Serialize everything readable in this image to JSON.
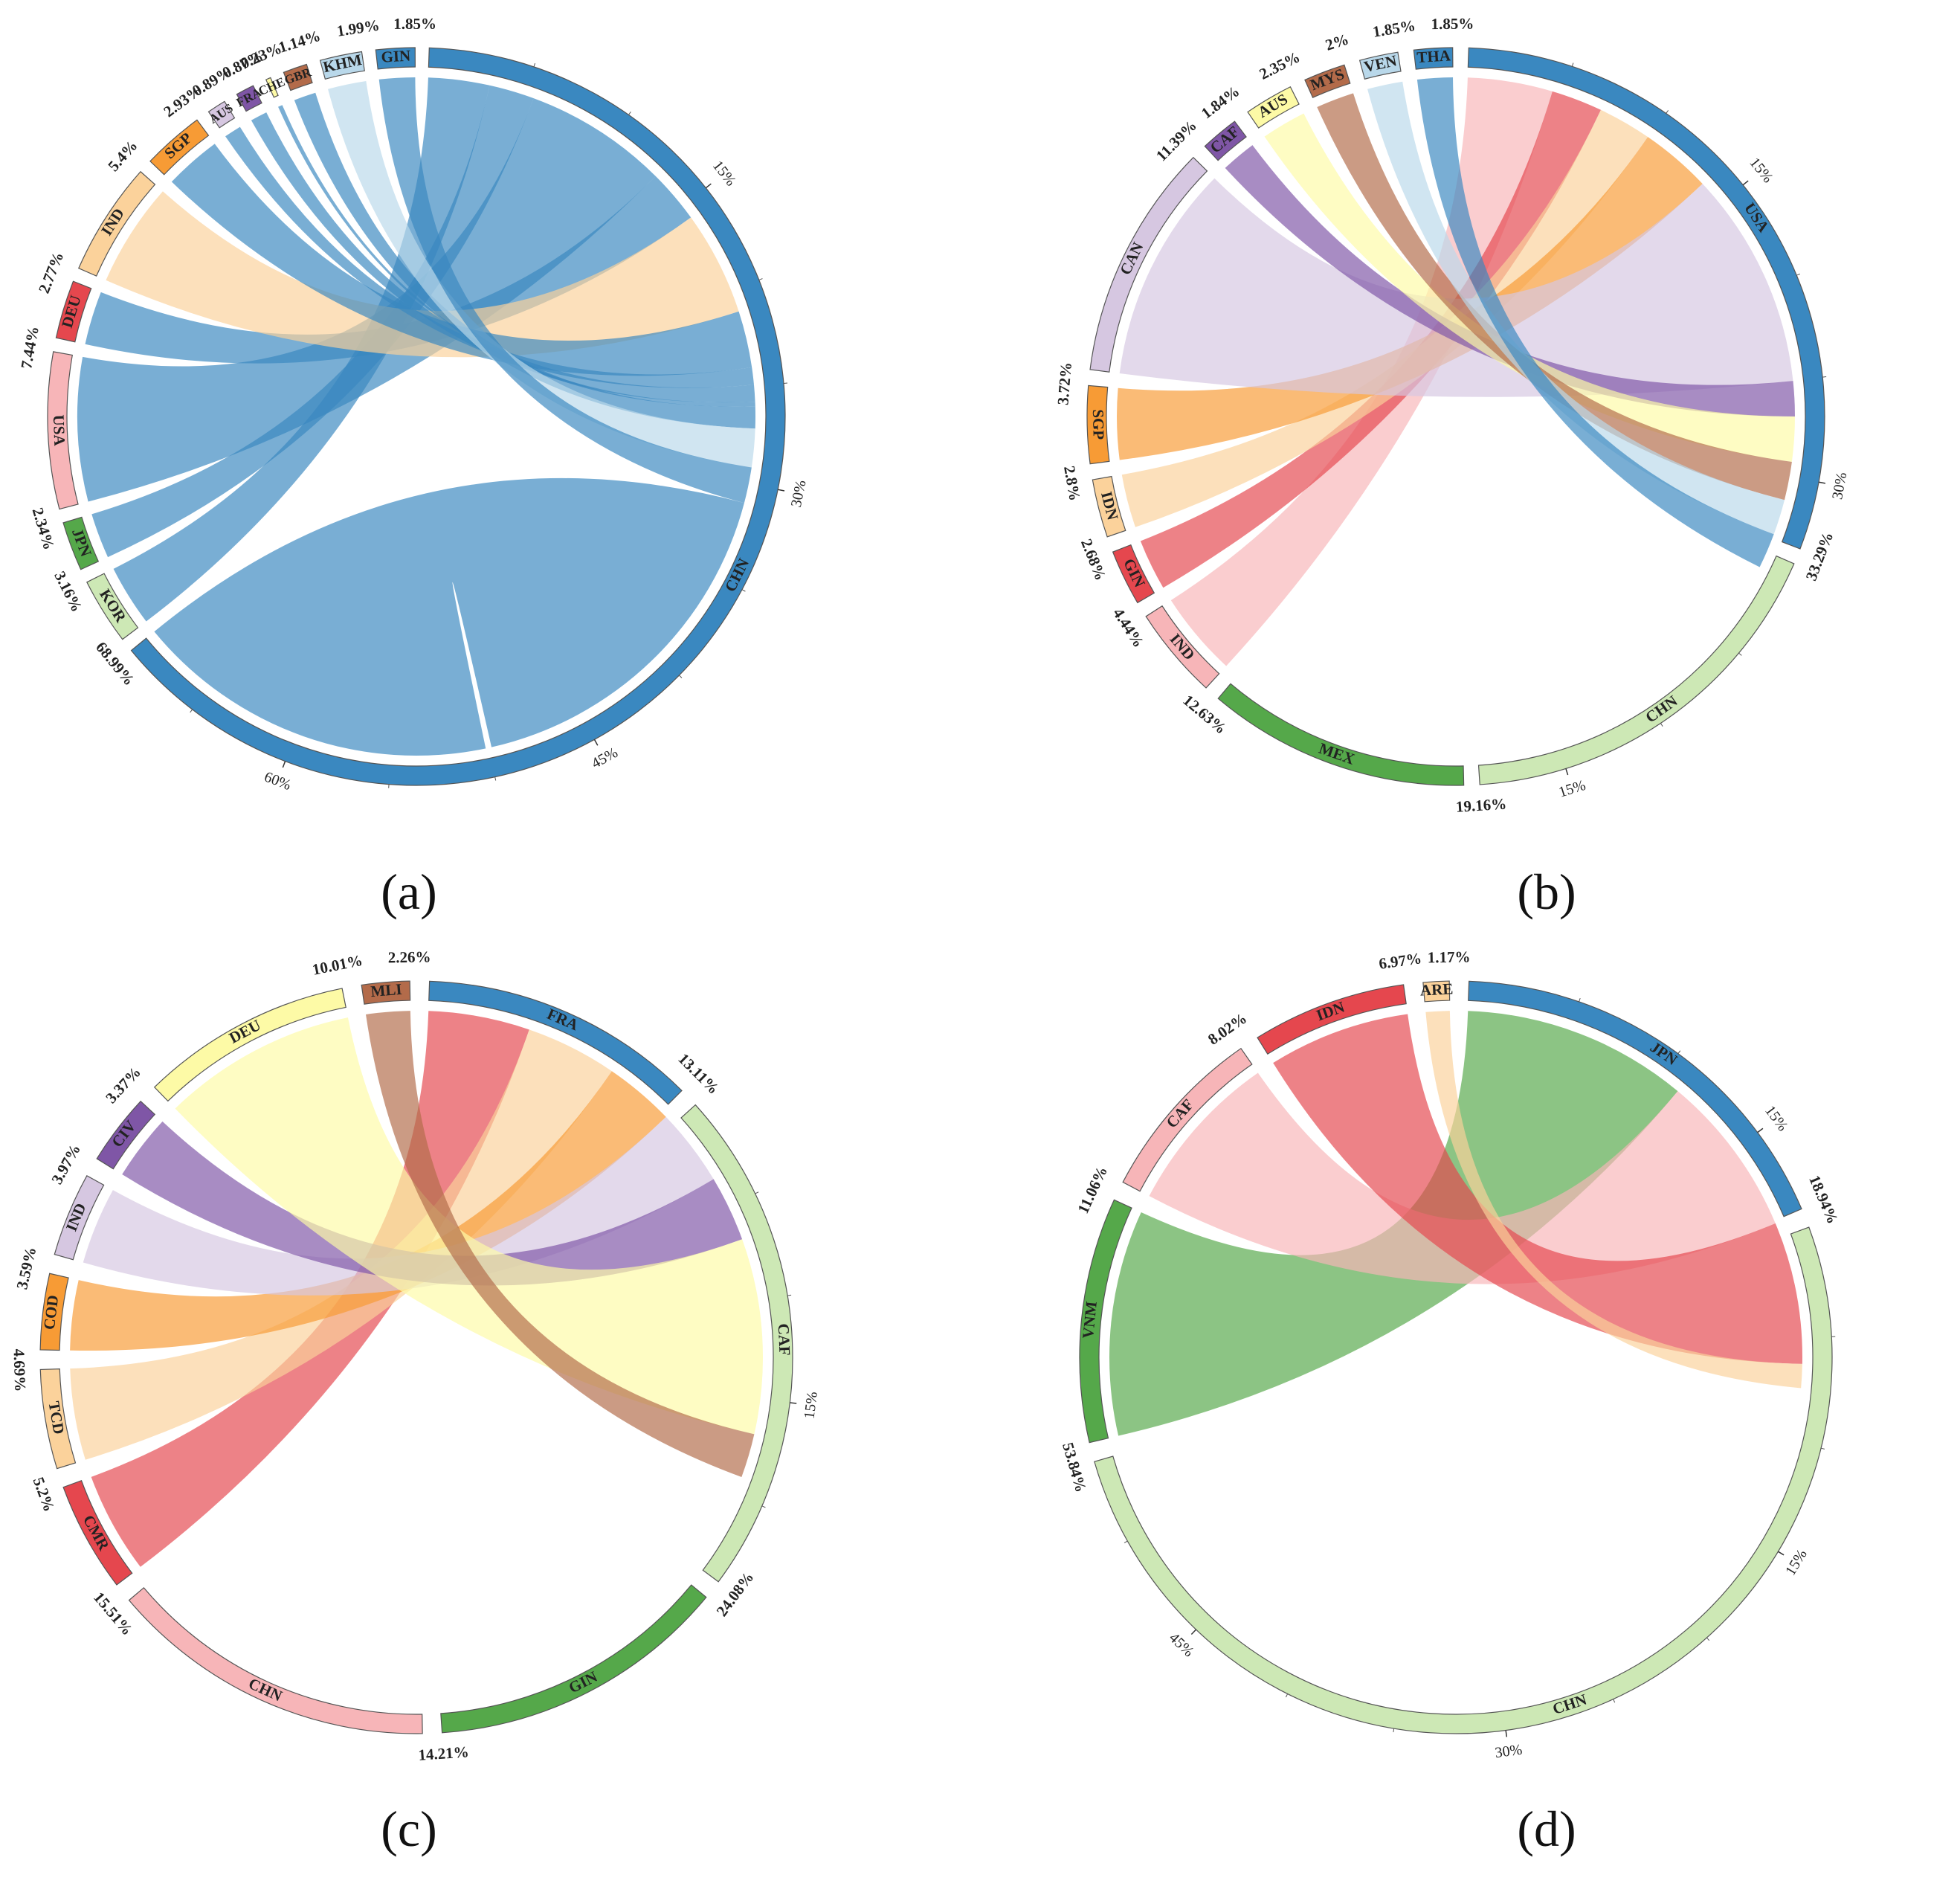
{
  "colors": {
    "chn": "#3a88c0",
    "chn_light": "#cde8b5",
    "palette": {
      "blue": "#3a88c0",
      "lightblue": "#b9d8ea",
      "green": "#55a84a",
      "lightgreen": "#cde8b5",
      "red": "#e5474e",
      "pink": "#f7b5b8",
      "orange": "#f79b35",
      "peach": "#fbd29b",
      "purple": "#7f56a6",
      "lavender": "#d6c7e1",
      "yellow": "#fdfaa6",
      "brown": "#b36b4a"
    }
  },
  "chart_data": [
    {
      "type": "chord",
      "caption": "(a)",
      "ticks_percent": [
        "15%",
        "30%",
        "45%",
        "60%"
      ],
      "hub": {
        "name": "CHN",
        "value": 68.99,
        "label": "68.99%",
        "color": "#3a88c0"
      },
      "sectors": [
        {
          "name": "KOR",
          "value": 3.16,
          "label": "3.16%",
          "color": "#cde8b5",
          "chord": "#3a88c0"
        },
        {
          "name": "JPN",
          "value": 2.34,
          "label": "2.34%",
          "color": "#55a84a",
          "chord": "#3a88c0"
        },
        {
          "name": "USA",
          "value": 7.44,
          "label": "7.44%",
          "color": "#f7b5b8",
          "chord": "#3a88c0"
        },
        {
          "name": "DEU",
          "value": 2.77,
          "label": "2.77%",
          "color": "#e5474e",
          "chord": "#3a88c0"
        },
        {
          "name": "IND",
          "value": 5.4,
          "label": "5.4%",
          "color": "#fbd29b",
          "chord": "#fbd29b"
        },
        {
          "name": "SGP",
          "value": 2.93,
          "label": "2.93%",
          "color": "#f79b35",
          "chord": "#3a88c0"
        },
        {
          "name": "AUS",
          "value": 0.89,
          "label": "0.89%",
          "color": "#d6c7e1",
          "chord": "#3a88c0"
        },
        {
          "name": "FRA",
          "value": 0.87,
          "label": "0.87%",
          "color": "#7f56a6",
          "chord": "#3a88c0"
        },
        {
          "name": "CHE",
          "value": 0.23,
          "label": "0.23%",
          "color": "#fdfaa6",
          "chord": "#3a88c0"
        },
        {
          "name": "GBR",
          "value": 1.14,
          "label": "1.14%",
          "color": "#b36b4a",
          "chord": "#3a88c0"
        },
        {
          "name": "KHM",
          "value": 1.99,
          "label": "1.99%",
          "color": "#b9d8ea",
          "chord": "#b9d8ea"
        },
        {
          "name": "GIN",
          "value": 1.85,
          "label": "1.85%",
          "color": "#3a88c0",
          "chord": "#3a88c0"
        }
      ]
    },
    {
      "type": "chord",
      "caption": "(b)",
      "top": [
        {
          "name": "USA",
          "value": 33.29,
          "label": "33.29%",
          "color": "#3a88c0",
          "ticks_percent": [
            "15%",
            "30%"
          ]
        },
        {
          "name": "CHN",
          "value": 19.16,
          "label": "19.16%",
          "color": "#cde8b5",
          "ticks_percent": [
            "15%"
          ]
        },
        {
          "name": "MEX",
          "value": 12.63,
          "label": "12.63%",
          "color": "#55a84a",
          "ticks_percent": []
        }
      ],
      "sectors": [
        {
          "name": "IND",
          "value": 4.44,
          "label": "4.44%",
          "color": "#f7b5b8",
          "to": "USA"
        },
        {
          "name": "GIN",
          "value": 2.68,
          "label": "2.68%",
          "color": "#e5474e",
          "to": "USA"
        },
        {
          "name": "IDN",
          "value": 2.8,
          "label": "2.8%",
          "color": "#fbd29b",
          "to": "USA"
        },
        {
          "name": "SGP",
          "value": 3.72,
          "label": "3.72%",
          "color": "#f79b35",
          "to": "USA"
        },
        {
          "name": "CAN",
          "value": 11.39,
          "label": "11.39%",
          "color": "#d6c7e1",
          "to": "USA"
        },
        {
          "name": "CAF",
          "value": 1.84,
          "label": "1.84%",
          "color": "#7f56a6",
          "to": "USA"
        },
        {
          "name": "AUS",
          "value": 2.35,
          "label": "2.35%",
          "color": "#fdfaa6",
          "to": "USA"
        },
        {
          "name": "MYS",
          "value": 2,
          "label": "2%",
          "color": "#b36b4a",
          "to": "USA"
        },
        {
          "name": "VEN",
          "value": 1.85,
          "label": "1.85%",
          "color": "#b9d8ea",
          "to": "USA"
        },
        {
          "name": "THA",
          "value": 1.85,
          "label": "1.85%",
          "color": "#3a88c0",
          "to": "USA"
        }
      ]
    },
    {
      "type": "chord",
      "caption": "(c)",
      "top": [
        {
          "name": "FRA",
          "value": 13.11,
          "label": "13.11%",
          "color": "#3a88c0",
          "ticks_percent": []
        },
        {
          "name": "CAF",
          "value": 24.08,
          "label": "24.08%",
          "color": "#cde8b5",
          "ticks_percent": [
            "15%"
          ]
        },
        {
          "name": "GIN",
          "value": 14.21,
          "label": "14.21%",
          "color": "#55a84a",
          "ticks_percent": []
        },
        {
          "name": "CHN",
          "value": 15.51,
          "label": "15.51%",
          "color": "#f7b5b8",
          "ticks_percent": []
        }
      ],
      "sectors": [
        {
          "name": "CMR",
          "value": 5.2,
          "label": "5.2%",
          "color": "#e5474e",
          "to": "FRA"
        },
        {
          "name": "TCD",
          "value": 4.69,
          "label": "4.69%",
          "color": "#fbd29b",
          "to": "FRA"
        },
        {
          "name": "COD",
          "value": 3.59,
          "label": "3.59%",
          "color": "#f79b35",
          "to": "FRA"
        },
        {
          "name": "IND",
          "value": 3.97,
          "label": "3.97%",
          "color": "#d6c7e1",
          "to": "FRA"
        },
        {
          "name": "CIV",
          "value": 3.37,
          "label": "3.37%",
          "color": "#7f56a6",
          "to": "FRA"
        },
        {
          "name": "DEU",
          "value": 10.01,
          "label": "10.01%",
          "color": "#fdfaa6",
          "to": "FRA"
        },
        {
          "name": "MLI",
          "value": 2.26,
          "label": "2.26%",
          "color": "#b36b4a",
          "to": "FRA"
        }
      ]
    },
    {
      "type": "chord",
      "caption": "(d)",
      "top": [
        {
          "name": "JPN",
          "value": 18.94,
          "label": "18.94%",
          "color": "#3a88c0",
          "ticks_percent": [
            "15%"
          ]
        },
        {
          "name": "CHN",
          "value": 53.84,
          "label": "53.84%",
          "color": "#cde8b5",
          "ticks_percent": [
            "15%",
            "30%",
            "45%"
          ]
        }
      ],
      "sectors": [
        {
          "name": "VNM",
          "value": 11.06,
          "label": "11.06%",
          "color": "#55a84a",
          "to": "JPN"
        },
        {
          "name": "CAF",
          "value": 8.02,
          "label": "8.02%",
          "color": "#f7b5b8",
          "to": "JPN"
        },
        {
          "name": "IDN",
          "value": 6.97,
          "label": "6.97%",
          "color": "#e5474e",
          "to": "JPN"
        },
        {
          "name": "ARE",
          "value": 1.17,
          "label": "1.17%",
          "color": "#fbd29b",
          "to": "JPN"
        }
      ]
    }
  ]
}
